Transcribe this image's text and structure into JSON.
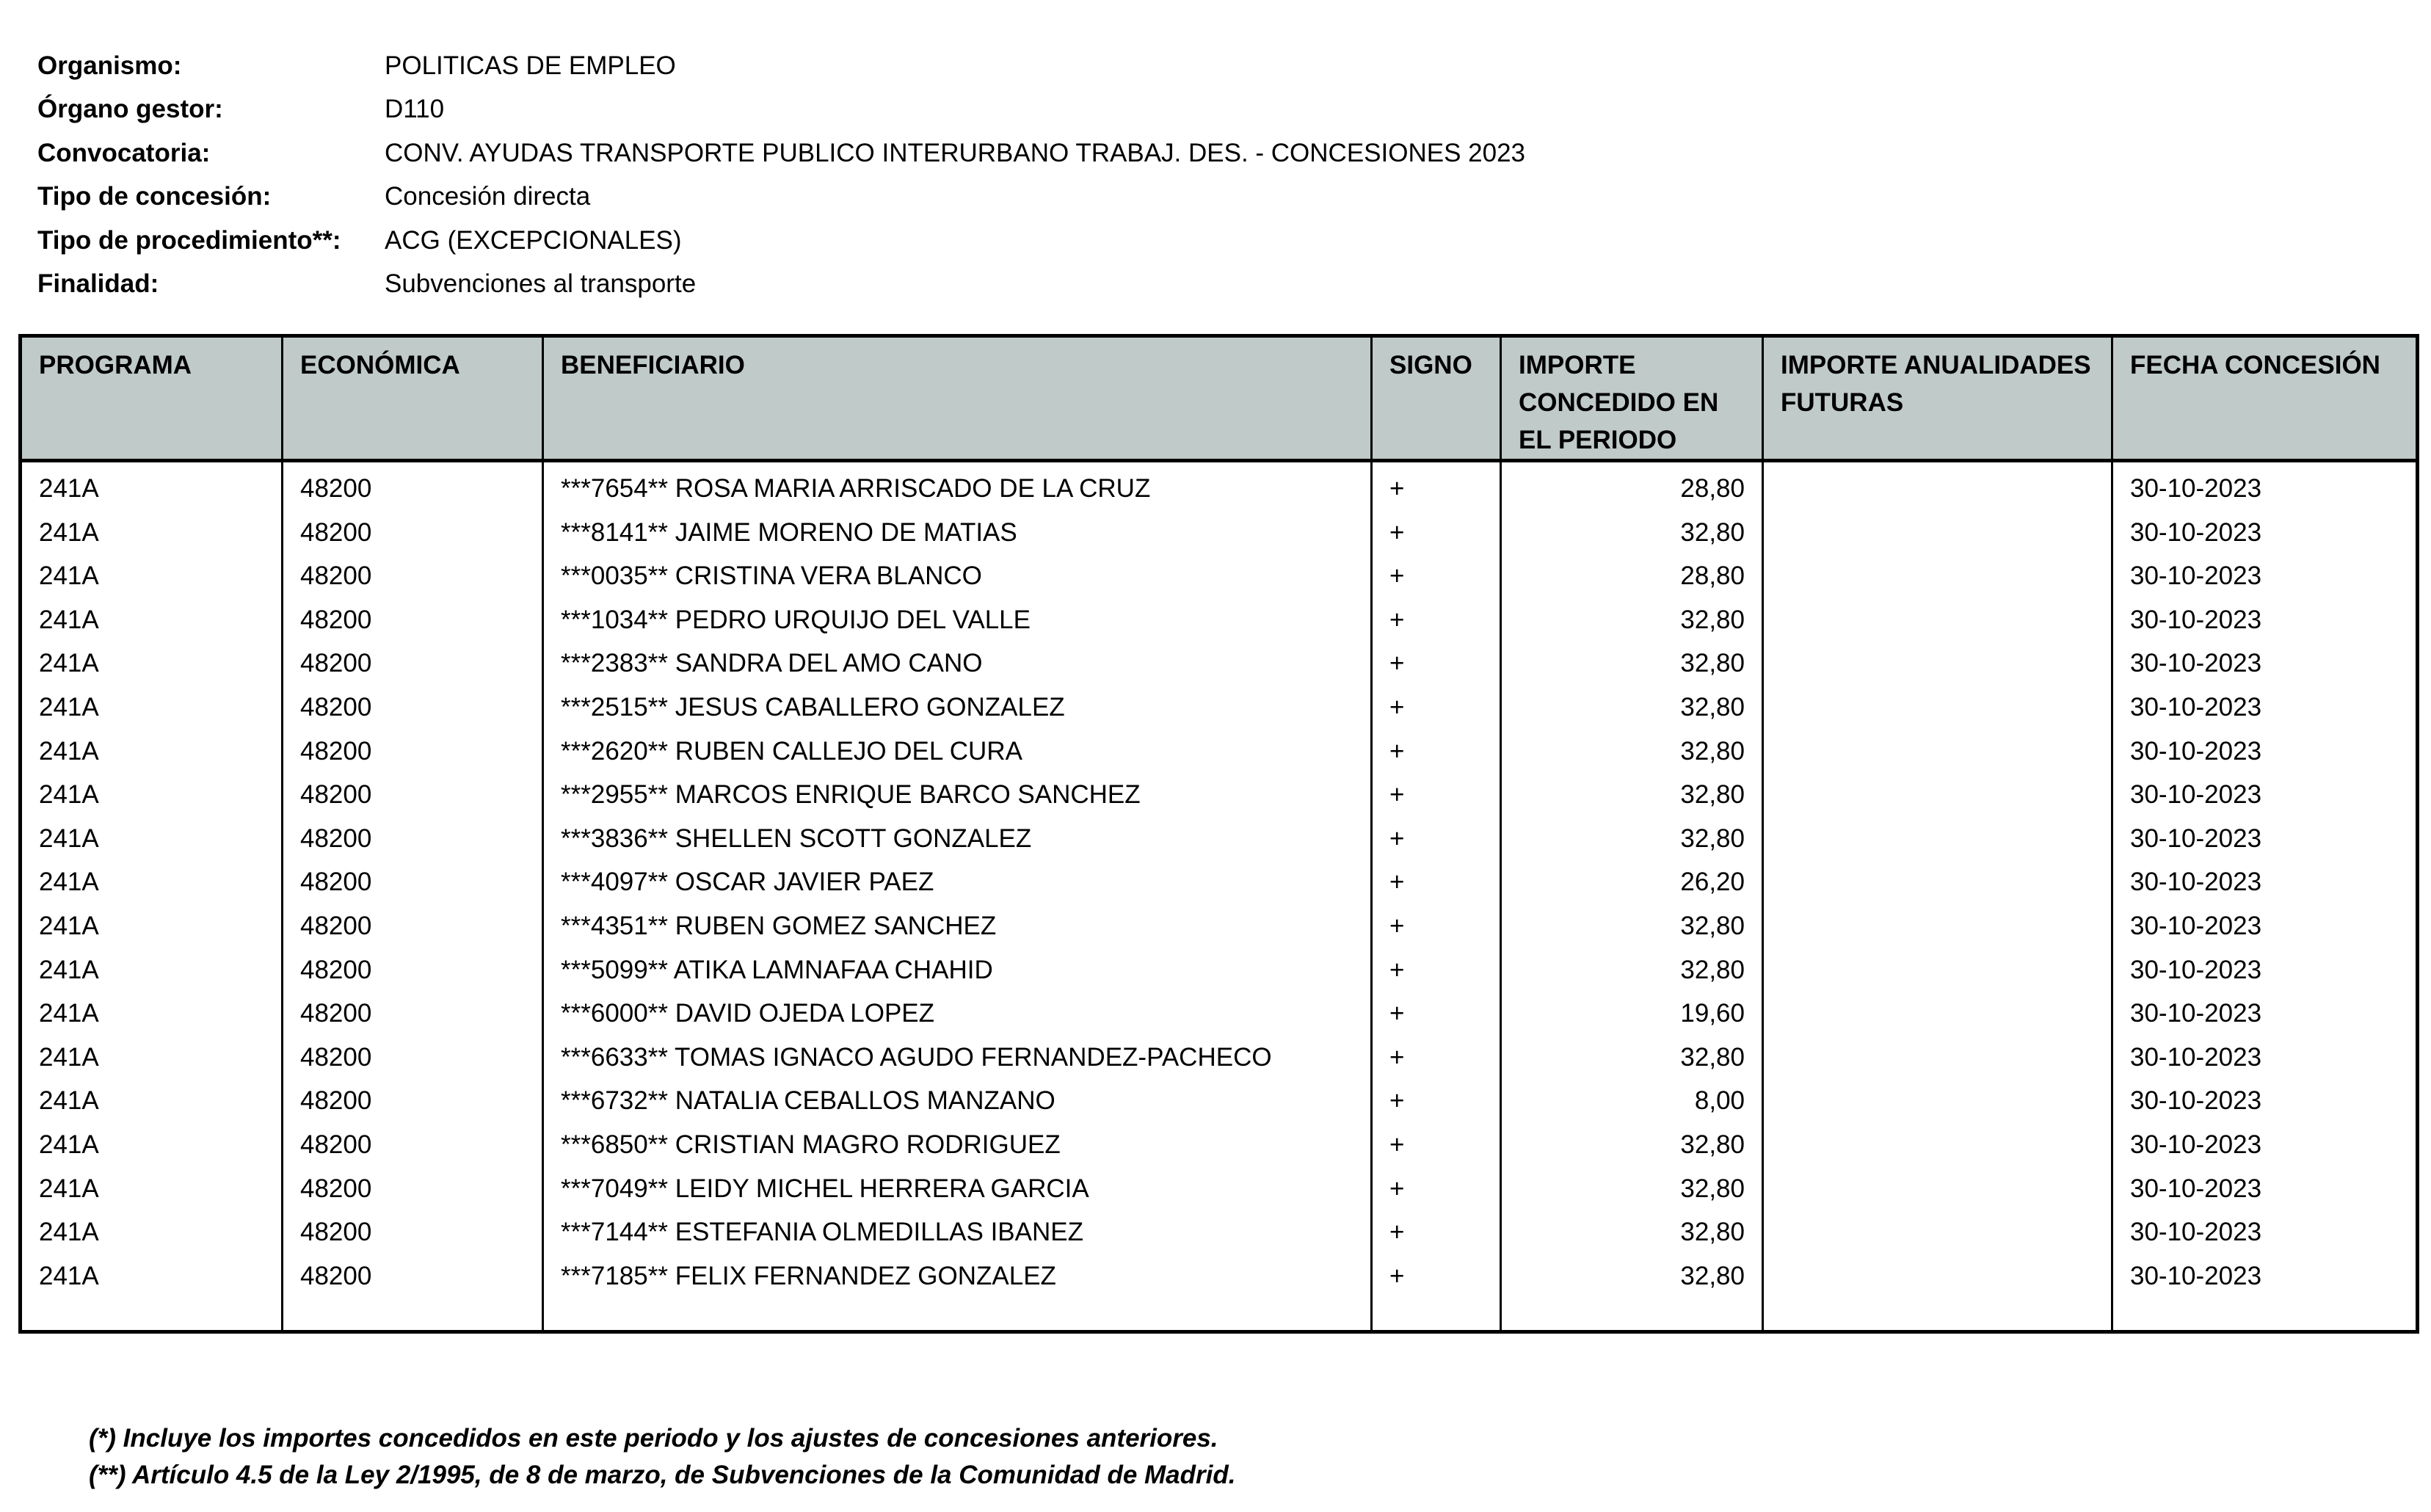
{
  "meta": [
    {
      "label": "Organismo:",
      "value": "POLITICAS DE EMPLEO"
    },
    {
      "label": "Órgano gestor:",
      "value": "D110"
    },
    {
      "label": "Convocatoria:",
      "value": "CONV. AYUDAS TRANSPORTE PUBLICO INTERURBANO TRABAJ. DES. - CONCESIONES 2023"
    },
    {
      "label": "Tipo de concesión:",
      "value": "Concesión directa"
    },
    {
      "label": "Tipo de procedimiento**:",
      "value": "ACG (EXCEPCIONALES)"
    },
    {
      "label": "Finalidad:",
      "value": "Subvenciones al transporte"
    }
  ],
  "table": {
    "header_bg": "#bfcac9",
    "columns": [
      "PROGRAMA",
      "ECONÓMICA",
      "BENEFICIARIO",
      "SIGNO",
      "IMPORTE CONCEDIDO EN EL PERIODO",
      "IMPORTE ANUALIDADES FUTURAS",
      "FECHA CONCESIÓN"
    ],
    "rows": [
      [
        "241A",
        "48200",
        "***7654** ROSA MARIA ARRISCADO DE LA CRUZ",
        "+",
        "28,80",
        "",
        "30-10-2023"
      ],
      [
        "241A",
        "48200",
        "***8141** JAIME MORENO DE MATIAS",
        "+",
        "32,80",
        "",
        "30-10-2023"
      ],
      [
        "241A",
        "48200",
        "***0035** CRISTINA VERA BLANCO",
        "+",
        "28,80",
        "",
        "30-10-2023"
      ],
      [
        "241A",
        "48200",
        "***1034** PEDRO URQUIJO DEL VALLE",
        "+",
        "32,80",
        "",
        "30-10-2023"
      ],
      [
        "241A",
        "48200",
        "***2383** SANDRA DEL AMO CANO",
        "+",
        "32,80",
        "",
        "30-10-2023"
      ],
      [
        "241A",
        "48200",
        "***2515** JESUS CABALLERO GONZALEZ",
        "+",
        "32,80",
        "",
        "30-10-2023"
      ],
      [
        "241A",
        "48200",
        "***2620** RUBEN CALLEJO DEL CURA",
        "+",
        "32,80",
        "",
        "30-10-2023"
      ],
      [
        "241A",
        "48200",
        "***2955** MARCOS ENRIQUE BARCO SANCHEZ",
        "+",
        "32,80",
        "",
        "30-10-2023"
      ],
      [
        "241A",
        "48200",
        "***3836** SHELLEN SCOTT GONZALEZ",
        "+",
        "32,80",
        "",
        "30-10-2023"
      ],
      [
        "241A",
        "48200",
        "***4097** OSCAR JAVIER PAEZ",
        "+",
        "26,20",
        "",
        "30-10-2023"
      ],
      [
        "241A",
        "48200",
        "***4351** RUBEN GOMEZ SANCHEZ",
        "+",
        "32,80",
        "",
        "30-10-2023"
      ],
      [
        "241A",
        "48200",
        "***5099** ATIKA LAMNAFAA CHAHID",
        "+",
        "32,80",
        "",
        "30-10-2023"
      ],
      [
        "241A",
        "48200",
        "***6000** DAVID OJEDA LOPEZ",
        "+",
        "19,60",
        "",
        "30-10-2023"
      ],
      [
        "241A",
        "48200",
        "***6633** TOMAS IGNACO AGUDO FERNANDEZ-PACHECO",
        "+",
        "32,80",
        "",
        "30-10-2023"
      ],
      [
        "241A",
        "48200",
        "***6732** NATALIA CEBALLOS MANZANO",
        "+",
        "8,00",
        "",
        "30-10-2023"
      ],
      [
        "241A",
        "48200",
        "***6850** CRISTIAN MAGRO RODRIGUEZ",
        "+",
        "32,80",
        "",
        "30-10-2023"
      ],
      [
        "241A",
        "48200",
        "***7049** LEIDY MICHEL HERRERA GARCIA",
        "+",
        "32,80",
        "",
        "30-10-2023"
      ],
      [
        "241A",
        "48200",
        "***7144** ESTEFANIA OLMEDILLAS IBANEZ",
        "+",
        "32,80",
        "",
        "30-10-2023"
      ],
      [
        "241A",
        "48200",
        "***7185** FELIX FERNANDEZ GONZALEZ",
        "+",
        "32,80",
        "",
        "30-10-2023"
      ]
    ]
  },
  "footnotes": [
    "(*) Incluye los importes concedidos en este periodo y los ajustes de concesiones anteriores.",
    "(**) Artículo 4.5 de la Ley 2/1995, de 8 de marzo, de Subvenciones de la Comunidad de Madrid."
  ]
}
